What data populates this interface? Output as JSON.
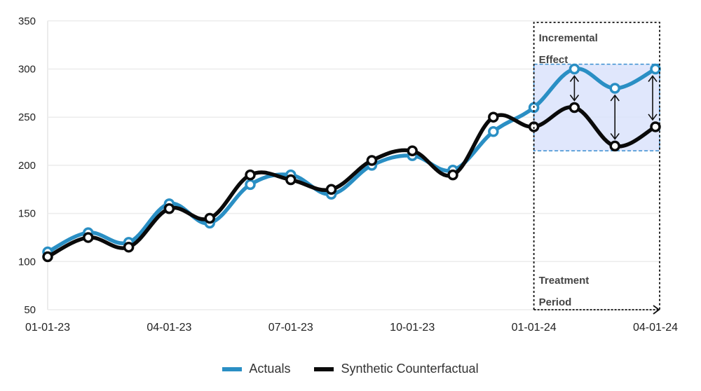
{
  "chart_data": {
    "type": "line",
    "title": "",
    "xlabel": "",
    "ylabel": "",
    "ylim": [
      50,
      350
    ],
    "yticks": [
      50,
      100,
      150,
      200,
      250,
      300,
      350
    ],
    "grid": true,
    "legend_position": "bottom",
    "x": [
      "01-01-23",
      "02-01-23",
      "03-01-23",
      "04-01-23",
      "05-01-23",
      "06-01-23",
      "07-01-23",
      "08-01-23",
      "09-01-23",
      "10-01-23",
      "11-01-23",
      "12-01-23",
      "01-01-24",
      "02-01-24",
      "03-01-24",
      "04-01-24"
    ],
    "xtick_labels": [
      {
        "index": 0,
        "label": "01-01-23"
      },
      {
        "index": 3,
        "label": "04-01-23"
      },
      {
        "index": 6,
        "label": "07-01-23"
      },
      {
        "index": 9,
        "label": "10-01-23"
      },
      {
        "index": 12,
        "label": "01-01-24"
      },
      {
        "index": 15,
        "label": "04-01-24"
      }
    ],
    "series": [
      {
        "name": "Actuals",
        "color": "#2a8fc4",
        "values": [
          110,
          130,
          120,
          160,
          140,
          180,
          190,
          170,
          200,
          210,
          195,
          235,
          260,
          300,
          280,
          300
        ]
      },
      {
        "name": "Synthetic Counterfactual",
        "color": "#0a0a0a",
        "values": [
          105,
          125,
          115,
          155,
          145,
          190,
          185,
          175,
          205,
          215,
          190,
          250,
          240,
          260,
          220,
          240
        ]
      }
    ],
    "annotations": [
      {
        "text_lines": [
          "Incremental",
          "Effect"
        ],
        "type": "shaded-region",
        "x_range": [
          12,
          15
        ],
        "y_range": [
          215,
          305
        ],
        "fill": "#dbe3fb",
        "border": "#3b8fd0"
      },
      {
        "text_lines": [
          "Treatment",
          "Period"
        ],
        "type": "dashed-box-with-arrow",
        "x_range": [
          12,
          15
        ]
      },
      {
        "type": "double-arrows",
        "indices": [
          13,
          14,
          15
        ]
      }
    ]
  },
  "legend": {
    "items": [
      {
        "label": "Actuals",
        "color": "#2a8fc4"
      },
      {
        "label": "Synthetic Counterfactual",
        "color": "#0a0a0a"
      }
    ]
  }
}
